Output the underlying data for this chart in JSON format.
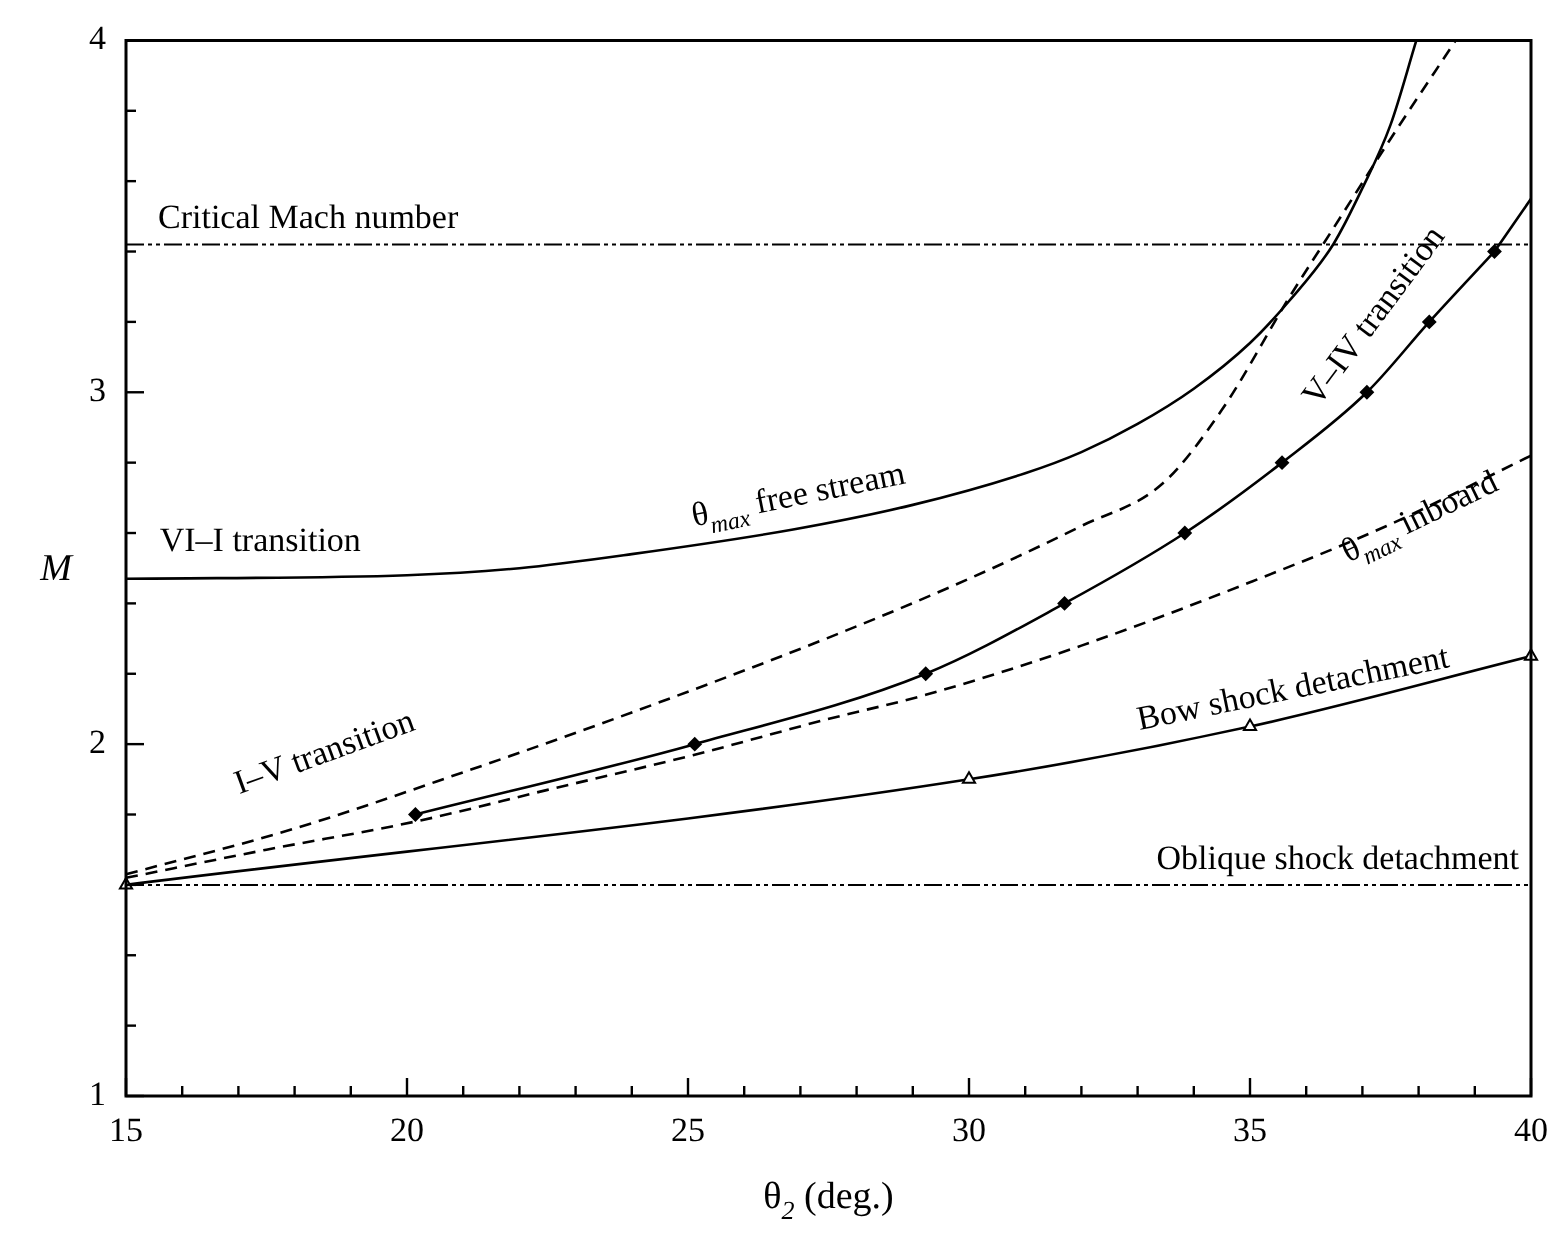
{
  "chart_data": {
    "type": "line",
    "xlabel": "θ$_{2}$ (deg.)",
    "ylabel": "M",
    "xlim": [
      15,
      40
    ],
    "ylim": [
      1,
      4
    ],
    "xticks": [
      15,
      {
        "value": 16,
        "label": null
      },
      {
        "value": 17,
        "label": null
      },
      {
        "value": 18,
        "label": null
      },
      {
        "value": 19,
        "label": null
      },
      20,
      {
        "value": 21,
        "label": null
      },
      {
        "value": 22,
        "label": null
      },
      {
        "value": 23,
        "label": null
      },
      {
        "value": 24,
        "label": null
      },
      25,
      {
        "value": 26,
        "label": null
      },
      {
        "value": 27,
        "label": null
      },
      {
        "value": 28,
        "label": null
      },
      {
        "value": 29,
        "label": null
      },
      30,
      {
        "value": 31,
        "label": null
      },
      {
        "value": 32,
        "label": null
      },
      {
        "value": 33,
        "label": null
      },
      {
        "value": 34,
        "label": null
      },
      35,
      {
        "value": 36,
        "label": null
      },
      {
        "value": 37,
        "label": null
      },
      {
        "value": 38,
        "label": null
      },
      {
        "value": 39,
        "label": null
      },
      40
    ],
    "yticks": [
      1,
      {
        "value": 1.2,
        "label": null
      },
      {
        "value": 1.4,
        "label": null
      },
      {
        "value": 1.6,
        "label": null
      },
      {
        "value": 1.8,
        "label": null
      },
      2,
      {
        "value": 2.2,
        "label": null
      },
      {
        "value": 2.4,
        "label": null
      },
      {
        "value": 2.6,
        "label": null
      },
      {
        "value": 2.8,
        "label": null
      },
      3,
      {
        "value": 3.2,
        "label": null
      },
      {
        "value": 3.4,
        "label": null
      },
      {
        "value": 3.6,
        "label": null
      },
      {
        "value": 3.8,
        "label": null
      },
      4
    ],
    "series": [
      {
        "color": "#000000",
        "line_style": "solid",
        "marker": "none",
        "x": [
          15,
          20,
          22,
          24,
          26.87,
          29,
          31,
          32,
          33,
          34,
          35,
          35.7,
          36.48,
          37,
          37.5,
          37.96
        ],
        "values": [
          2.47,
          2.48,
          2.5,
          2.54,
          2.61,
          2.68,
          2.77,
          2.83,
          2.91,
          3.01,
          3.14,
          3.26,
          3.42,
          3.58,
          3.76,
          4
        ]
      },
      {
        "color": "#000000",
        "line_style": "dashed",
        "marker": "none",
        "x": [
          15,
          18,
          21,
          24,
          27.46,
          30,
          32,
          33.44,
          34.5,
          35.7,
          36.5,
          37.5,
          38.66
        ],
        "values": [
          1.63,
          1.76,
          1.92,
          2.09,
          2.3,
          2.47,
          2.62,
          2.74,
          2.95,
          3.27,
          3.47,
          3.72,
          4
        ]
      },
      {
        "color": "#000000",
        "line_style": "solid",
        "marker": "diamond",
        "x": [
          20.15,
          25.12,
          29.23,
          31.7,
          33.84,
          35.57,
          37.08,
          38.19,
          39.35
        ],
        "values": [
          1.8,
          2,
          2.2,
          2.4,
          2.6,
          2.8,
          3,
          3.2,
          3.4
        ]
      },
      {
        "color": "#000000",
        "line_style": "solid",
        "marker": "none",
        "x": [
          39.35,
          40
        ],
        "values": [
          3.4,
          3.55
        ]
      },
      {
        "color": "#000000",
        "line_style": "dashed",
        "marker": "none",
        "x": [
          15,
          17.5,
          20.15,
          22.5,
          25.12,
          27.46,
          29.23,
          32,
          35,
          37.43,
          40
        ],
        "values": [
          1.62,
          1.7,
          1.78,
          1.87,
          1.97,
          2.07,
          2.14,
          2.28,
          2.46,
          2.62,
          2.82
        ]
      },
      {
        "color": "#000000",
        "line_style": "solid",
        "marker": "triangle",
        "x": [
          15,
          30,
          35,
          40
        ],
        "values": [
          1.6,
          1.9,
          2.05,
          2.25
        ]
      }
    ],
    "ref_lines": [
      {
        "axis": "y",
        "value": 3.42,
        "label": "Critical Mach number",
        "line_style": "dashed"
      },
      {
        "axis": "y",
        "value": 1.6,
        "label": "Oblique shock detachment",
        "line_style": "dashed"
      }
    ],
    "annotations": [
      "VI–I transition",
      "θ$_{max}$ free stream",
      "V–IV transition",
      "θ$_{max}$ inboard",
      "I–V transition",
      "Bow shock detachment"
    ]
  }
}
